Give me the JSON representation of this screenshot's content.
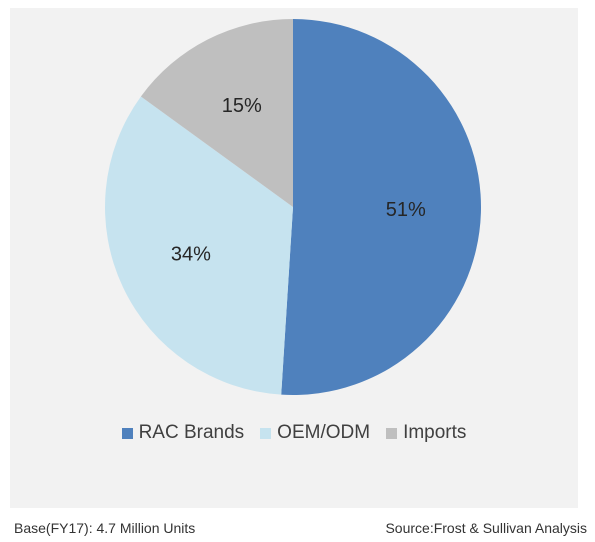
{
  "chart_data": {
    "type": "pie",
    "categories": [
      "RAC Brands",
      "OEM/ODM",
      "Imports"
    ],
    "values": [
      51,
      34,
      15
    ],
    "labels": [
      "51%",
      "34%",
      "15%"
    ],
    "colors": [
      "#4f81bd",
      "#c6e3ef",
      "#bfbfbf"
    ],
    "legend_position": "bottom",
    "start_angle_deg": 0,
    "direction": "clockwise"
  },
  "footer": {
    "base": "Base(FY17): 4.7 Million Units",
    "source": "Source:Frost & Sullivan Analysis"
  }
}
